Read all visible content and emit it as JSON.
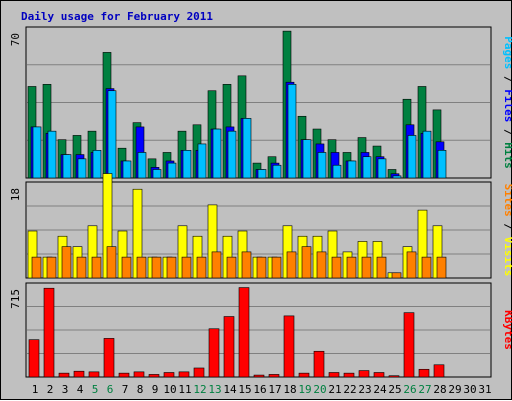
{
  "chart_data": {
    "type": "bar",
    "title": "Daily usage for February 2011",
    "colors": {
      "hits": "#008040",
      "files": "#0000ff",
      "pages": "#00c0ff",
      "visits": "#ffff00",
      "sites": "#ff8000",
      "kbytes": "#ff0000",
      "weekend_label": "#008040",
      "title": "#0000c0"
    },
    "categories": [
      "1",
      "2",
      "3",
      "4",
      "5",
      "6",
      "7",
      "8",
      "9",
      "10",
      "11",
      "12",
      "13",
      "14",
      "15",
      "16",
      "17",
      "18",
      "19",
      "20",
      "21",
      "22",
      "23",
      "24",
      "25",
      "26",
      "27",
      "28",
      "29",
      "30",
      "31"
    ],
    "weekend_days": [
      "5",
      "6",
      "12",
      "13",
      "19",
      "20",
      "26",
      "27"
    ],
    "panels": [
      {
        "name": "hits-files-pages",
        "ymax_label": "70",
        "ymax": 70,
        "right_label": [
          "Pages",
          "Files",
          "Hits"
        ],
        "series": [
          {
            "name": "Hits",
            "key": "hits",
            "values": [
              43,
              44,
              18,
              20,
              22,
              59,
              14,
              26,
              9,
              12,
              22,
              25,
              41,
              44,
              48,
              7,
              10,
              69,
              29,
              23,
              18,
              12,
              19,
              15,
              4,
              37,
              43,
              32,
              0,
              0,
              0
            ]
          },
          {
            "name": "Files",
            "key": "files",
            "values": [
              24,
              21,
              11,
              11,
              12,
              42,
              8,
              24,
              5,
              8,
              13,
              13,
              23,
              24,
              28,
              4,
              7,
              45,
              18,
              16,
              12,
              8,
              12,
              10,
              2,
              25,
              21,
              17,
              0,
              0,
              0
            ]
          },
          {
            "name": "Pages",
            "key": "pages",
            "values": [
              24,
              22,
              11,
              9,
              13,
              41,
              8,
              12,
              4,
              7,
              13,
              16,
              23,
              22,
              28,
              4,
              6,
              44,
              18,
              12,
              6,
              8,
              10,
              9,
              1,
              20,
              22,
              13,
              0,
              0,
              0
            ]
          }
        ]
      },
      {
        "name": "visits-sites",
        "ymax_label": "18",
        "ymax": 18,
        "right_label": [
          "Sites",
          "Visits"
        ],
        "series": [
          {
            "name": "Visits",
            "key": "visits",
            "values": [
              9,
              4,
              8,
              6,
              10,
              20,
              9,
              17,
              4,
              4,
              10,
              8,
              14,
              8,
              9,
              4,
              4,
              10,
              8,
              8,
              9,
              5,
              7,
              7,
              1,
              6,
              13,
              10,
              0,
              0,
              0
            ]
          },
          {
            "name": "Sites",
            "key": "sites",
            "values": [
              4,
              4,
              6,
              4,
              4,
              6,
              4,
              4,
              4,
              4,
              4,
              4,
              5,
              4,
              5,
              4,
              4,
              5,
              6,
              5,
              4,
              4,
              4,
              4,
              1,
              5,
              4,
              4,
              0,
              0,
              0
            ]
          }
        ]
      },
      {
        "name": "kbytes",
        "ymax_label": "715",
        "ymax": 715,
        "right_label": [
          "KBytes"
        ],
        "series": [
          {
            "name": "KBytes",
            "key": "kbytes",
            "values": [
              290,
              690,
              30,
              45,
              40,
              300,
              30,
              40,
              20,
              35,
              40,
              70,
              375,
              470,
              695,
              15,
              20,
              475,
              30,
              200,
              35,
              30,
              50,
              35,
              10,
              500,
              60,
              95,
              0,
              0,
              0
            ]
          }
        ]
      }
    ]
  }
}
